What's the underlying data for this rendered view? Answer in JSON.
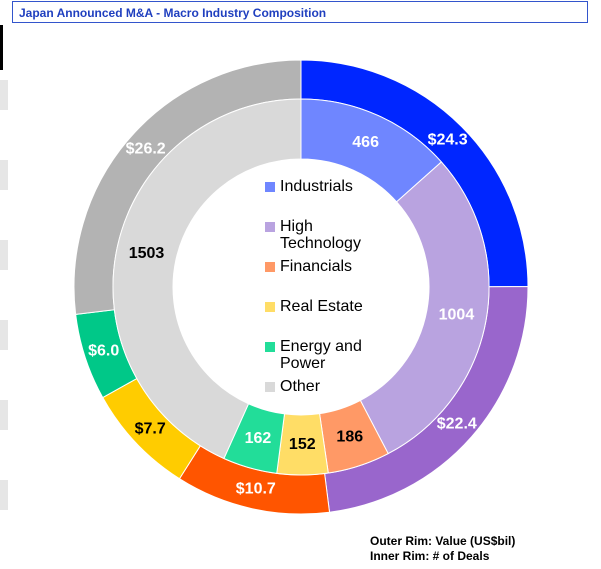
{
  "chart_data": {
    "type": "donut",
    "title": "Japan Announced M&A - Macro Industry Composition",
    "categories": [
      "Industrials",
      "High Technology",
      "Financials",
      "Real Estate",
      "Energy and Power",
      "Other"
    ],
    "series": [
      {
        "name": "Outer Rim: Value (US$bil)",
        "values": [
          24.3,
          22.4,
          10.7,
          7.7,
          6.0,
          26.2
        ],
        "value_labels": [
          "$24.3",
          "$22.4",
          "$10.7",
          "$7.7",
          "$6.0",
          "$26.2"
        ],
        "colors": [
          "#0026ff",
          "#9966cc",
          "#ff5500",
          "#ffcc00",
          "#00c888",
          "#b3b3b3"
        ],
        "label_colors": [
          "#ffffff",
          "#ffffff",
          "#ffffff",
          "#000000",
          "#ffffff",
          "#ffffff"
        ]
      },
      {
        "name": "Inner Rim: # of Deals",
        "values": [
          466,
          1004,
          186,
          152,
          162,
          1503
        ],
        "colors": [
          "#6f86ff",
          "#b9a3e0",
          "#ff9966",
          "#ffdd66",
          "#22dd99",
          "#d9d9d9"
        ],
        "label_colors": [
          "#ffffff",
          "#ffffff",
          "#000000",
          "#000000",
          "#ffffff",
          "#000000"
        ]
      }
    ]
  }
}
